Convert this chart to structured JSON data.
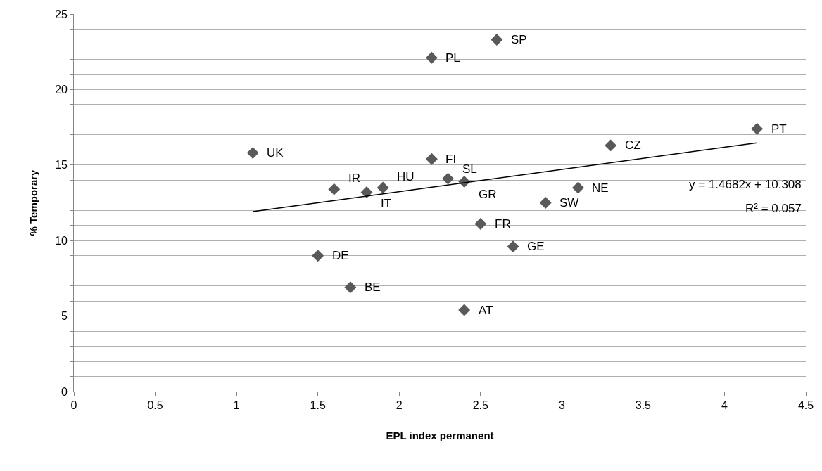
{
  "chart_data": {
    "type": "scatter",
    "xlabel": "EPL index permanent",
    "ylabel": "% Temporary",
    "xlim": [
      0,
      4.5
    ],
    "xticks": [
      0,
      0.5,
      1,
      1.5,
      2,
      2.5,
      3,
      3.5,
      4,
      4.5
    ],
    "ylim": [
      0,
      25
    ],
    "yticks": [
      0,
      {
        "value": 1,
        "label": null
      },
      {
        "value": 2,
        "label": null
      },
      {
        "value": 3,
        "label": null
      },
      {
        "value": 4,
        "label": null
      },
      5,
      {
        "value": 6,
        "label": null
      },
      {
        "value": 7,
        "label": null
      },
      {
        "value": 8,
        "label": null
      },
      {
        "value": 9,
        "label": null
      },
      10,
      {
        "value": 11,
        "label": null
      },
      {
        "value": 12,
        "label": null
      },
      {
        "value": 13,
        "label": null
      },
      {
        "value": 14,
        "label": null
      },
      15,
      {
        "value": 16,
        "label": null
      },
      {
        "value": 17,
        "label": null
      },
      {
        "value": 18,
        "label": null
      },
      {
        "value": 19,
        "label": null
      },
      20,
      {
        "value": 21,
        "label": null
      },
      {
        "value": 22,
        "label": null
      },
      {
        "value": 23,
        "label": null
      },
      {
        "value": 24,
        "label": null
      },
      25
    ],
    "grid": "y",
    "marker": "diamond",
    "series": [
      {
        "color": "#595959",
        "x": [
          1.1,
          1.6,
          1.8,
          1.9,
          2.2,
          2.3,
          2.4,
          2.5,
          2.7,
          1.5,
          1.7,
          2.4,
          2.6,
          2.2,
          4.2,
          3.3,
          3.1,
          2.9
        ],
        "values": [
          15.8,
          13.4,
          13.2,
          13.5,
          15.4,
          14.1,
          13.9,
          11.1,
          9.6,
          9.0,
          6.9,
          5.4,
          23.3,
          22.1,
          17.4,
          16.3,
          13.5,
          12.5
        ]
      },
      {
        "type": "line",
        "color": "#000000",
        "x": [
          1.1,
          4.2
        ],
        "values": [
          11.92,
          16.47
        ],
        "marker": "none"
      }
    ],
    "annotations": [
      {
        "text": "UK",
        "x": 1.1,
        "y": 15.8
      },
      {
        "text": "IR",
        "x": 1.6,
        "y": 13.4
      },
      {
        "text": "IT",
        "x": 1.8,
        "y": 13.2
      },
      {
        "text": "HU",
        "x": 1.9,
        "y": 13.5
      },
      {
        "text": "FI",
        "x": 2.2,
        "y": 15.4
      },
      {
        "text": "SL",
        "x": 2.3,
        "y": 14.1
      },
      {
        "text": "GR",
        "x": 2.4,
        "y": 13.9
      },
      {
        "text": "FR",
        "x": 2.5,
        "y": 11.1
      },
      {
        "text": "GE",
        "x": 2.7,
        "y": 9.6
      },
      {
        "text": "DE",
        "x": 1.5,
        "y": 9.0
      },
      {
        "text": "BE",
        "x": 1.7,
        "y": 6.9
      },
      {
        "text": "AT",
        "x": 2.4,
        "y": 5.4
      },
      {
        "text": "SP",
        "x": 2.6,
        "y": 23.3
      },
      {
        "text": "PL",
        "x": 2.2,
        "y": 22.1
      },
      {
        "text": "PT",
        "x": 4.2,
        "y": 17.4
      },
      {
        "text": "CZ",
        "x": 3.3,
        "y": 16.3
      },
      {
        "text": "NE",
        "x": 3.1,
        "y": 13.5
      },
      {
        "text": "SW",
        "x": 2.9,
        "y": 12.5
      },
      "y = 1.4682x + 10.308",
      "R² = 0.057"
    ]
  }
}
